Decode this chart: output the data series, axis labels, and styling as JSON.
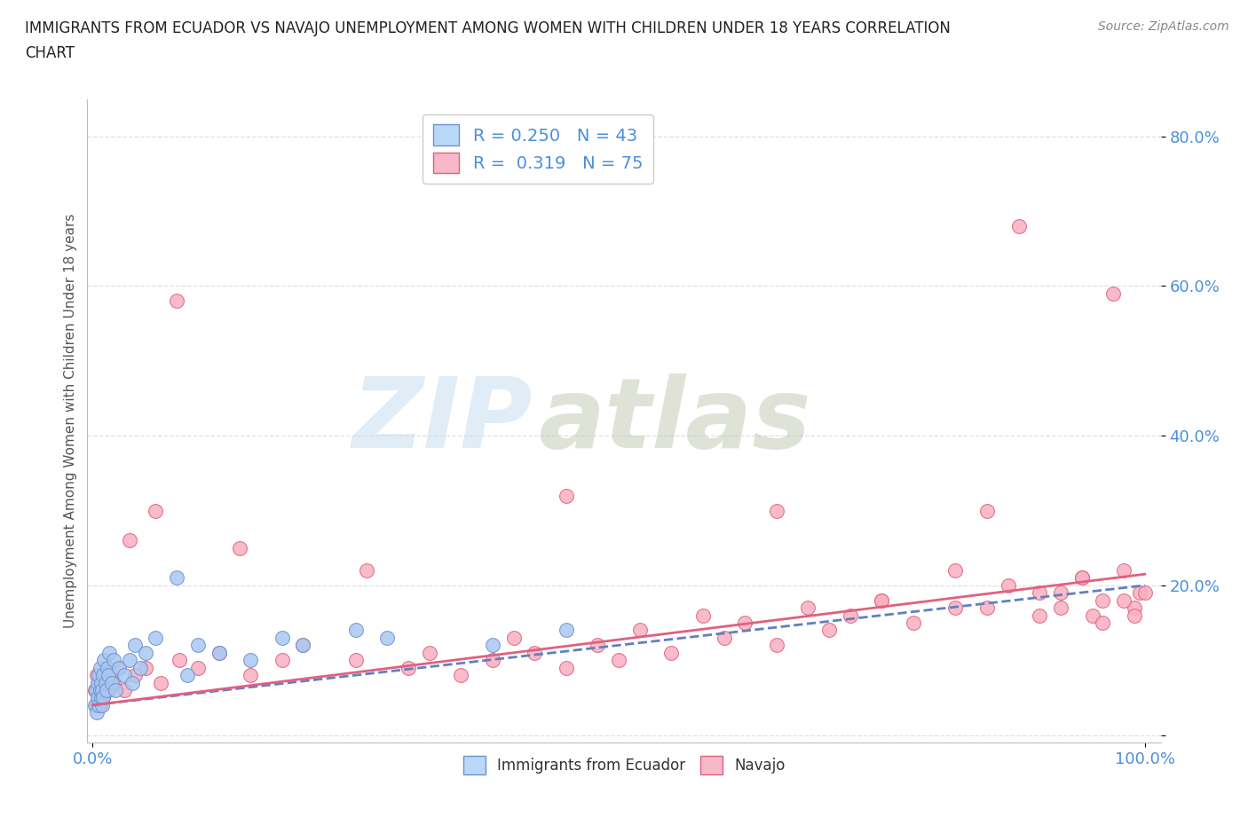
{
  "title_line1": "IMMIGRANTS FROM ECUADOR VS NAVAJO UNEMPLOYMENT AMONG WOMEN WITH CHILDREN UNDER 18 YEARS CORRELATION",
  "title_line2": "CHART",
  "source": "Source: ZipAtlas.com",
  "ylabel": "Unemployment Among Women with Children Under 18 years",
  "watermark_zip": "ZIP",
  "watermark_atlas": "atlas",
  "legend_blue_R": 0.25,
  "legend_blue_N": 43,
  "legend_pink_R": 0.319,
  "legend_pink_N": 75,
  "yticks": [
    0.0,
    0.2,
    0.4,
    0.6,
    0.8
  ],
  "ytick_labels": [
    "",
    "20.0%",
    "40.0%",
    "60.0%",
    "80.0%"
  ],
  "blue_scatter_x": [
    0.002,
    0.003,
    0.004,
    0.005,
    0.005,
    0.006,
    0.006,
    0.007,
    0.007,
    0.008,
    0.008,
    0.009,
    0.009,
    0.01,
    0.01,
    0.011,
    0.012,
    0.013,
    0.014,
    0.015,
    0.016,
    0.018,
    0.02,
    0.022,
    0.025,
    0.03,
    0.035,
    0.038,
    0.04,
    0.045,
    0.05,
    0.06,
    0.08,
    0.09,
    0.1,
    0.12,
    0.15,
    0.18,
    0.2,
    0.25,
    0.28,
    0.38,
    0.45
  ],
  "blue_scatter_y": [
    0.04,
    0.06,
    0.03,
    0.07,
    0.05,
    0.04,
    0.08,
    0.06,
    0.09,
    0.05,
    0.07,
    0.04,
    0.06,
    0.08,
    0.05,
    0.1,
    0.07,
    0.06,
    0.09,
    0.08,
    0.11,
    0.07,
    0.1,
    0.06,
    0.09,
    0.08,
    0.1,
    0.07,
    0.12,
    0.09,
    0.11,
    0.13,
    0.21,
    0.08,
    0.12,
    0.11,
    0.1,
    0.13,
    0.12,
    0.14,
    0.13,
    0.12,
    0.14
  ],
  "pink_scatter_x": [
    0.002,
    0.003,
    0.004,
    0.005,
    0.006,
    0.007,
    0.008,
    0.009,
    0.01,
    0.012,
    0.015,
    0.018,
    0.02,
    0.025,
    0.03,
    0.04,
    0.05,
    0.065,
    0.08,
    0.082,
    0.1,
    0.12,
    0.15,
    0.18,
    0.2,
    0.25,
    0.3,
    0.32,
    0.35,
    0.38,
    0.4,
    0.42,
    0.45,
    0.48,
    0.5,
    0.52,
    0.55,
    0.58,
    0.6,
    0.62,
    0.65,
    0.68,
    0.7,
    0.72,
    0.75,
    0.78,
    0.82,
    0.85,
    0.88,
    0.9,
    0.92,
    0.94,
    0.95,
    0.96,
    0.97,
    0.98,
    0.99,
    0.995,
    0.035,
    0.06,
    0.14,
    0.26,
    0.45,
    0.65,
    0.75,
    0.82,
    0.85,
    0.87,
    0.9,
    0.92,
    0.94,
    0.96,
    0.98,
    0.99,
    1.0
  ],
  "pink_scatter_y": [
    0.06,
    0.04,
    0.08,
    0.05,
    0.07,
    0.04,
    0.06,
    0.08,
    0.05,
    0.07,
    0.06,
    0.08,
    0.07,
    0.09,
    0.06,
    0.08,
    0.09,
    0.07,
    0.58,
    0.1,
    0.09,
    0.11,
    0.08,
    0.1,
    0.12,
    0.1,
    0.09,
    0.11,
    0.08,
    0.1,
    0.13,
    0.11,
    0.09,
    0.12,
    0.1,
    0.14,
    0.11,
    0.16,
    0.13,
    0.15,
    0.12,
    0.17,
    0.14,
    0.16,
    0.18,
    0.15,
    0.17,
    0.3,
    0.68,
    0.19,
    0.17,
    0.21,
    0.16,
    0.18,
    0.59,
    0.22,
    0.17,
    0.19,
    0.26,
    0.3,
    0.25,
    0.22,
    0.32,
    0.3,
    0.18,
    0.22,
    0.17,
    0.2,
    0.16,
    0.19,
    0.21,
    0.15,
    0.18,
    0.16,
    0.19
  ],
  "blue_line_intercept": 0.04,
  "blue_line_slope": 0.16,
  "pink_line_intercept": 0.04,
  "pink_line_slope": 0.175,
  "background_color": "#ffffff",
  "grid_color": "#e0e0e0",
  "blue_scatter_color": "#a8c8f0",
  "blue_scatter_edge": "#7090d0",
  "pink_scatter_color": "#f8b0c0",
  "pink_scatter_edge": "#e06080",
  "blue_line_color": "#6080c0",
  "blue_line_style": "--",
  "pink_line_color": "#e06080",
  "pink_line_style": "-",
  "tick_color": "#4a90d9",
  "title_color": "#222222",
  "source_color": "#888888",
  "ylabel_color": "#555555",
  "legend_text_color": "#4a90d9",
  "legend_blue_patch": "#b8d8f8",
  "legend_pink_patch": "#f8b8c8",
  "legend_blue_edge": "#7090d0",
  "legend_pink_edge": "#e06080"
}
